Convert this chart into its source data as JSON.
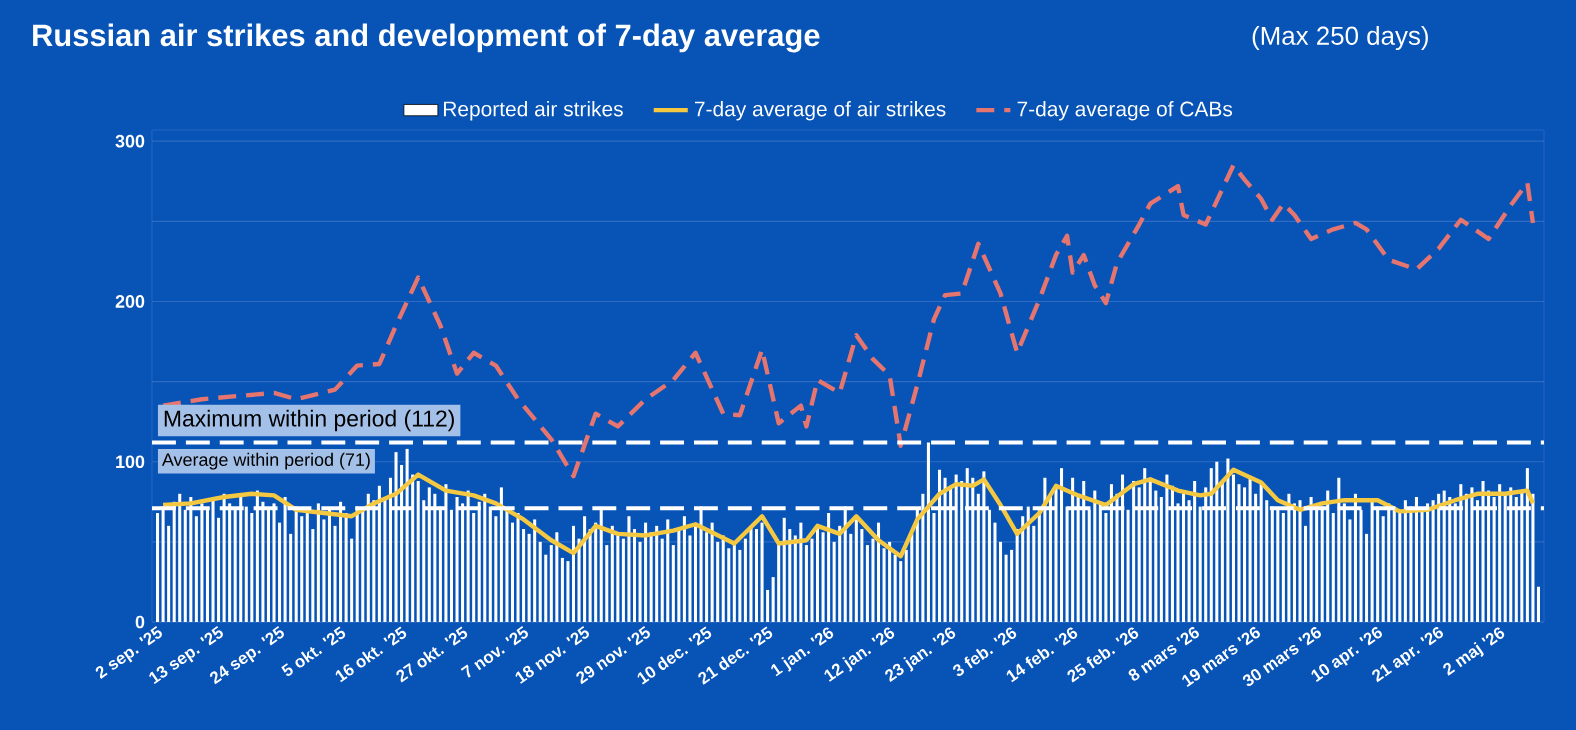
{
  "chart_data": {
    "type": "bar",
    "title": "Russian air strikes and development of 7-day average",
    "subtitle": "(Max 250 days)",
    "x": [
      "2025-09-02",
      "2025-09-03",
      "2025-09-04",
      "2025-09-05",
      "2025-09-06",
      "2025-09-07",
      "2025-09-08",
      "2025-09-09",
      "2025-09-10",
      "2025-09-11",
      "2025-09-12",
      "2025-09-13",
      "2025-09-14",
      "2025-09-15",
      "2025-09-16",
      "2025-09-17",
      "2025-09-18",
      "2025-09-19",
      "2025-09-20",
      "2025-09-21",
      "2025-09-22",
      "2025-09-23",
      "2025-09-24",
      "2025-09-25",
      "2025-09-26",
      "2025-09-27",
      "2025-09-28",
      "2025-09-29",
      "2025-09-30",
      "2025-10-01",
      "2025-10-02",
      "2025-10-03",
      "2025-10-04",
      "2025-10-05",
      "2025-10-06",
      "2025-10-07",
      "2025-10-08",
      "2025-10-09",
      "2025-10-10",
      "2025-10-11",
      "2025-10-12",
      "2025-10-13",
      "2025-10-14",
      "2025-10-15",
      "2025-10-16",
      "2025-10-17",
      "2025-10-18",
      "2025-10-19",
      "2025-10-20",
      "2025-10-21",
      "2025-10-22",
      "2025-10-23",
      "2025-10-24",
      "2025-10-25",
      "2025-10-26",
      "2025-10-27",
      "2025-10-28",
      "2025-10-29",
      "2025-10-30",
      "2025-10-31",
      "2025-11-01",
      "2025-11-02",
      "2025-11-03",
      "2025-11-04",
      "2025-11-05",
      "2025-11-06",
      "2025-11-07",
      "2025-11-08",
      "2025-11-09",
      "2025-11-10",
      "2025-11-11",
      "2025-11-12",
      "2025-11-13",
      "2025-11-14",
      "2025-11-15",
      "2025-11-16",
      "2025-11-17",
      "2025-11-18",
      "2025-11-19",
      "2025-11-20",
      "2025-11-21",
      "2025-11-22",
      "2025-11-23",
      "2025-11-24",
      "2025-11-25",
      "2025-11-26",
      "2025-11-27",
      "2025-11-28",
      "2025-11-29",
      "2025-11-30",
      "2025-12-01",
      "2025-12-02",
      "2025-12-03",
      "2025-12-04",
      "2025-12-05",
      "2025-12-06",
      "2025-12-07",
      "2025-12-08",
      "2025-12-09",
      "2025-12-10",
      "2025-12-11",
      "2025-12-12",
      "2025-12-13",
      "2025-12-14",
      "2025-12-15",
      "2025-12-16",
      "2025-12-17",
      "2025-12-18",
      "2025-12-19",
      "2025-12-20",
      "2025-12-21",
      "2025-12-22",
      "2025-12-23",
      "2025-12-24",
      "2025-12-25",
      "2025-12-26",
      "2025-12-27",
      "2025-12-28",
      "2025-12-29",
      "2025-12-30",
      "2025-12-31",
      "2026-01-01",
      "2026-01-02",
      "2026-01-03",
      "2026-01-04",
      "2026-01-05",
      "2026-01-06",
      "2026-01-07",
      "2026-01-08",
      "2026-01-09",
      "2026-01-10",
      "2026-01-11",
      "2026-01-12",
      "2026-01-13",
      "2026-01-14",
      "2026-01-15",
      "2026-01-16",
      "2026-01-17",
      "2026-01-18",
      "2026-01-19",
      "2026-01-20",
      "2026-01-21",
      "2026-01-22",
      "2026-01-23",
      "2026-01-24",
      "2026-01-25",
      "2026-01-26",
      "2026-01-27",
      "2026-01-28",
      "2026-01-29",
      "2026-01-30",
      "2026-01-31",
      "2026-02-01",
      "2026-02-02",
      "2026-02-03",
      "2026-02-04",
      "2026-02-05",
      "2026-02-06",
      "2026-02-07",
      "2026-02-08",
      "2026-02-09",
      "2026-02-10",
      "2026-02-11",
      "2026-02-12",
      "2026-02-13",
      "2026-02-14",
      "2026-02-15",
      "2026-02-16",
      "2026-02-17",
      "2026-02-18",
      "2026-02-19",
      "2026-02-20",
      "2026-02-21",
      "2026-02-22",
      "2026-02-23",
      "2026-02-24",
      "2026-02-25",
      "2026-02-26",
      "2026-02-27",
      "2026-02-28",
      "2026-03-01",
      "2026-03-02",
      "2026-03-03",
      "2026-03-04",
      "2026-03-05",
      "2026-03-06",
      "2026-03-07",
      "2026-03-08",
      "2026-03-09",
      "2026-03-10",
      "2026-03-11",
      "2026-03-12",
      "2026-03-13",
      "2026-03-14",
      "2026-03-15",
      "2026-03-16",
      "2026-03-17",
      "2026-03-18",
      "2026-03-19",
      "2026-03-20",
      "2026-03-21",
      "2026-03-22",
      "2026-03-23",
      "2026-03-24",
      "2026-03-25",
      "2026-03-26",
      "2026-03-27",
      "2026-03-28",
      "2026-03-29",
      "2026-03-30",
      "2026-03-31",
      "2026-04-01",
      "2026-04-02",
      "2026-04-03",
      "2026-04-04",
      "2026-04-05",
      "2026-04-06",
      "2026-04-07",
      "2026-04-08",
      "2026-04-09",
      "2026-04-10",
      "2026-04-11",
      "2026-04-12",
      "2026-04-13",
      "2026-04-14",
      "2026-04-15",
      "2026-04-16",
      "2026-04-17",
      "2026-04-18",
      "2026-04-19",
      "2026-04-20",
      "2026-04-21",
      "2026-04-22",
      "2026-04-23",
      "2026-04-24",
      "2026-04-25",
      "2026-04-26",
      "2026-04-27",
      "2026-04-28",
      "2026-04-29",
      "2026-04-30",
      "2026-05-01",
      "2026-05-02",
      "2026-05-03",
      "2026-05-04",
      "2026-05-05",
      "2026-05-06",
      "2026-05-07",
      "2026-05-08",
      "2026-05-09"
    ],
    "xlim": [
      "2025-09-01",
      "2026-05-10"
    ],
    "xticks": [
      {
        "value": "2025-09-02",
        "label": "2 sep. '25"
      },
      {
        "value": "2025-09-13",
        "label": "13 sep. '25"
      },
      {
        "value": "2025-09-24",
        "label": "24 sep. '25"
      },
      {
        "value": "2025-10-05",
        "label": "5 okt. '25"
      },
      {
        "value": "2025-10-16",
        "label": "16 okt. '25"
      },
      {
        "value": "2025-10-27",
        "label": "27 okt. '25"
      },
      {
        "value": "2025-11-07",
        "label": "7 nov. '25"
      },
      {
        "value": "2025-11-18",
        "label": "18 nov. '25"
      },
      {
        "value": "2025-11-29",
        "label": "29 nov. '25"
      },
      {
        "value": "2025-12-10",
        "label": "10 dec. '25"
      },
      {
        "value": "2025-12-21",
        "label": "21 dec. '25"
      },
      {
        "value": "2026-01-01",
        "label": "1 jan. '26"
      },
      {
        "value": "2026-01-12",
        "label": "12 jan. '26"
      },
      {
        "value": "2026-01-23",
        "label": "23 jan. '26"
      },
      {
        "value": "2026-02-03",
        "label": "3 feb. '26"
      },
      {
        "value": "2026-02-14",
        "label": "14 feb. '26"
      },
      {
        "value": "2026-02-25",
        "label": "25 feb. '26"
      },
      {
        "value": "2026-03-08",
        "label": "8 mars '26"
      },
      {
        "value": "2026-03-19",
        "label": "19 mars '26"
      },
      {
        "value": "2026-03-30",
        "label": "30 mars '26"
      },
      {
        "value": "2026-04-10",
        "label": "10 apr. '26"
      },
      {
        "value": "2026-04-21",
        "label": "21 apr. '26"
      },
      {
        "value": "2026-05-02",
        "label": "2 maj '26"
      }
    ],
    "ylim": [
      0,
      307
    ],
    "yticks": [
      0,
      {
        "value": 50,
        "label": null
      },
      100,
      {
        "value": 150,
        "label": null
      },
      200,
      {
        "value": 250,
        "label": null
      },
      300
    ],
    "grid": "y",
    "legend": "top",
    "marker": "none",
    "series": [
      {
        "name": "Reported air strikes",
        "color": "#ffffff",
        "values": [
          68,
          72,
          60,
          75,
          80,
          70,
          78,
          66,
          74,
          71,
          76,
          65,
          80,
          74,
          70,
          78,
          72,
          68,
          82,
          75,
          70,
          74,
          62,
          78,
          55,
          72,
          66,
          70,
          58,
          74,
          64,
          70,
          60,
          75,
          68,
          52,
          72,
          70,
          80,
          76,
          85,
          78,
          90,
          106,
          98,
          108,
          92,
          88,
          76,
          84,
          80,
          72,
          86,
          70,
          78,
          74,
          82,
          68,
          75,
          80,
          72,
          66,
          84,
          70,
          62,
          68,
          58,
          55,
          64,
          50,
          42,
          48,
          56,
          40,
          38,
          60,
          52,
          66,
          58,
          62,
          70,
          48,
          60,
          54,
          52,
          66,
          58,
          50,
          62,
          56,
          60,
          52,
          64,
          48,
          58,
          66,
          54,
          60,
          72,
          56,
          62,
          50,
          54,
          46,
          48,
          45,
          52,
          60,
          58,
          62,
          20,
          28,
          50,
          65,
          58,
          54,
          62,
          48,
          52,
          60,
          56,
          68,
          50,
          60,
          72,
          55,
          64,
          58,
          48,
          52,
          62,
          46,
          50,
          42,
          38,
          45,
          55,
          70,
          80,
          112,
          68,
          95,
          90,
          85,
          92,
          88,
          96,
          90,
          80,
          94,
          70,
          62,
          50,
          42,
          45,
          58,
          66,
          72,
          60,
          70,
          90,
          80,
          85,
          96,
          72,
          90,
          78,
          88,
          70,
          82,
          75,
          68,
          86,
          80,
          92,
          70,
          88,
          84,
          96,
          90,
          82,
          78,
          92,
          85,
          74,
          80,
          76,
          88,
          72,
          84,
          96,
          100,
          88,
          102,
          92,
          86,
          84,
          90,
          80,
          88,
          76,
          72,
          70,
          68,
          80,
          74,
          76,
          60,
          78,
          70,
          72,
          82,
          68,
          90,
          74,
          64,
          80,
          70,
          55,
          76,
          72,
          66,
          74,
          70,
          68,
          76,
          72,
          78,
          70,
          74,
          76,
          80,
          82,
          78,
          74,
          86,
          80,
          84,
          76,
          88,
          82,
          78,
          86,
          80,
          84,
          78,
          82,
          96,
          80,
          22
        ]
      },
      {
        "name": "7-day average of air strikes",
        "type": "line",
        "color": "#f5c842",
        "line_style": "solid",
        "x": [
          "2025-09-03",
          "2025-09-08",
          "2025-09-14",
          "2025-09-19",
          "2025-09-23",
          "2025-09-27",
          "2025-10-02",
          "2025-10-07",
          "2025-10-11",
          "2025-10-15",
          "2025-10-19",
          "2025-10-24",
          "2025-10-29",
          "2025-11-02",
          "2025-11-07",
          "2025-11-12",
          "2025-11-16",
          "2025-11-20",
          "2025-11-24",
          "2025-11-29",
          "2025-12-04",
          "2025-12-08",
          "2025-12-15",
          "2025-12-20",
          "2025-12-23",
          "2025-12-28",
          "2025-12-30",
          "2026-01-03",
          "2026-01-06",
          "2026-01-10",
          "2026-01-14",
          "2026-01-17",
          "2026-01-21",
          "2026-01-24",
          "2026-01-27",
          "2026-01-29",
          "2026-02-01",
          "2026-02-04",
          "2026-02-08",
          "2026-02-11",
          "2026-02-15",
          "2026-02-20",
          "2026-02-25",
          "2026-02-28",
          "2026-03-05",
          "2026-03-09",
          "2026-03-11",
          "2026-03-15",
          "2026-03-20",
          "2026-03-23",
          "2026-03-27",
          "2026-03-31",
          "2026-04-04",
          "2026-04-10",
          "2026-04-14",
          "2026-04-19",
          "2026-04-24",
          "2026-04-28",
          "2026-05-03",
          "2026-05-07",
          "2026-05-08"
        ],
        "values": [
          73,
          74,
          78,
          80,
          79,
          70,
          68,
          66,
          74,
          80,
          92,
          82,
          79,
          74,
          64,
          51,
          43,
          60,
          55,
          54,
          57,
          61,
          49,
          66,
          49,
          51,
          60,
          55,
          66,
          51,
          41,
          64,
          80,
          86,
          85,
          89,
          73,
          55,
          68,
          85,
          79,
          73,
          86,
          89,
          82,
          79,
          80,
          95,
          87,
          76,
          70,
          74,
          76,
          76,
          69,
          70,
          76,
          80,
          80,
          82,
          74
        ]
      },
      {
        "name": "7-day average of CABs",
        "type": "line",
        "color": "#e5756e",
        "line_style": "dashed",
        "x": [
          "2025-09-03",
          "2025-09-10",
          "2025-09-23",
          "2025-09-27",
          "2025-10-04",
          "2025-10-08",
          "2025-10-12",
          "2025-10-15",
          "2025-10-19",
          "2025-10-23",
          "2025-10-26",
          "2025-10-29",
          "2025-11-02",
          "2025-11-06",
          "2025-11-12",
          "2025-11-16",
          "2025-11-20",
          "2025-11-24",
          "2025-11-29",
          "2025-12-04",
          "2025-12-08",
          "2025-12-13",
          "2025-12-16",
          "2025-12-20",
          "2025-12-23",
          "2025-12-27",
          "2025-12-28",
          "2025-12-30",
          "2026-01-03",
          "2026-01-06",
          "2026-01-09",
          "2026-01-12",
          "2026-01-14",
          "2026-01-17",
          "2026-01-20",
          "2026-01-22",
          "2026-01-25",
          "2026-01-28",
          "2026-02-01",
          "2026-02-04",
          "2026-02-08",
          "2026-02-11",
          "2026-02-13",
          "2026-02-14",
          "2026-02-16",
          "2026-02-18",
          "2026-02-20",
          "2026-02-22",
          "2026-02-26",
          "2026-02-28",
          "2026-03-05",
          "2026-03-06",
          "2026-03-10",
          "2026-03-15",
          "2026-03-17",
          "2026-03-20",
          "2026-03-22",
          "2026-03-24",
          "2026-03-26",
          "2026-03-29",
          "2026-04-02",
          "2026-04-06",
          "2026-04-08",
          "2026-04-12",
          "2026-04-17",
          "2026-04-21",
          "2026-04-25",
          "2026-04-30",
          "2026-05-04",
          "2026-05-07",
          "2026-05-08"
        ],
        "values": [
          135,
          139,
          143,
          139,
          145,
          160,
          161,
          185,
          215,
          185,
          155,
          168,
          160,
          139,
          114,
          91,
          130,
          122,
          139,
          151,
          168,
          130,
          129,
          170,
          124,
          135,
          122,
          151,
          143,
          179,
          164,
          154,
          110,
          148,
          189,
          204,
          205,
          236,
          205,
          168,
          201,
          229,
          241,
          218,
          229,
          210,
          199,
          224,
          248,
          261,
          272,
          254,
          248,
          285,
          276,
          264,
          251,
          261,
          254,
          239,
          245,
          249,
          245,
          226,
          220,
          233,
          251,
          239,
          260,
          274,
          249
        ]
      }
    ],
    "ref_lines": [
      {
        "axis": "y",
        "value": 112,
        "label": "Maximum within period (112)",
        "color": "#ffffff",
        "line_style": "dashed"
      },
      {
        "axis": "y",
        "value": 71,
        "label": "Average within period (71)",
        "color": "#ffffff",
        "line_style": "dashed"
      }
    ]
  }
}
